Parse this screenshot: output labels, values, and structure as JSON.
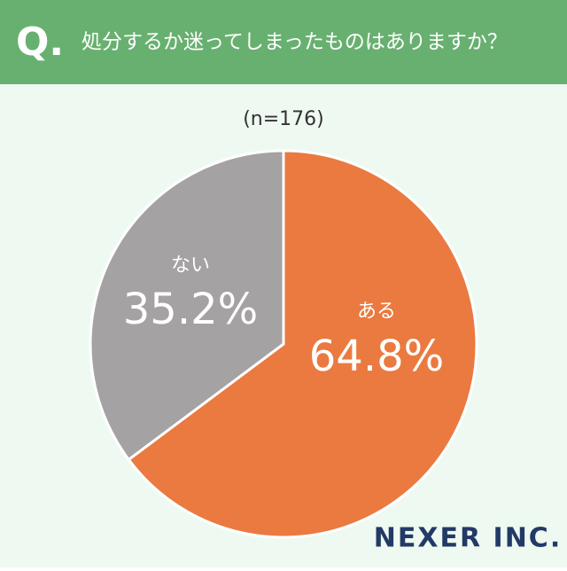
{
  "header": {
    "mark": "Q.",
    "title": "処分するか迷ってしまったものはありますか？"
  },
  "chart_data": {
    "type": "pie",
    "subtitle": "(n=176)",
    "categories": [
      "ある",
      "ない"
    ],
    "values": [
      64.8,
      35.2
    ],
    "value_labels": [
      "64.8%",
      "35.2%"
    ],
    "colors": [
      "#ea7a40",
      "#a4a2a3"
    ]
  },
  "footer": {
    "logo": "NEXER INC."
  }
}
